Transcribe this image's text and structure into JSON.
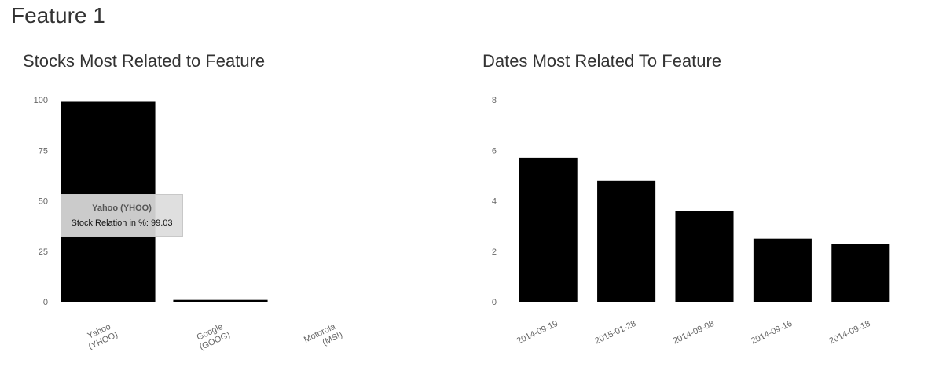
{
  "page": {
    "title": "Feature 1"
  },
  "chart_data": [
    {
      "type": "bar",
      "title": "Stocks Most Related to Feature",
      "categories": [
        [
          "Yahoo",
          "(YHOO)"
        ],
        [
          "Google",
          "(GOOG)"
        ],
        [
          "Motorola",
          "(MSI)"
        ]
      ],
      "values": [
        99.03,
        0.9,
        0
      ],
      "yticks": [
        "0",
        "25",
        "50",
        "75",
        "100"
      ],
      "ylim": [
        0,
        100
      ],
      "bar_color": "#000000",
      "grid": false,
      "tooltip": {
        "title": "Yahoo (YHOO)",
        "body": "Stock Relation in %: 99.03"
      }
    },
    {
      "type": "bar",
      "title": "Dates Most Related To Feature",
      "categories": [
        "2014-09-19",
        "2015-01-28",
        "2014-09-08",
        "2014-09-16",
        "2014-09-18"
      ],
      "values": [
        5.7,
        4.8,
        3.6,
        2.5,
        2.3
      ],
      "yticks": [
        "0",
        "2",
        "4",
        "6",
        "8"
      ],
      "ylim": [
        0,
        8
      ],
      "bar_color": "#000000",
      "grid": false
    }
  ]
}
